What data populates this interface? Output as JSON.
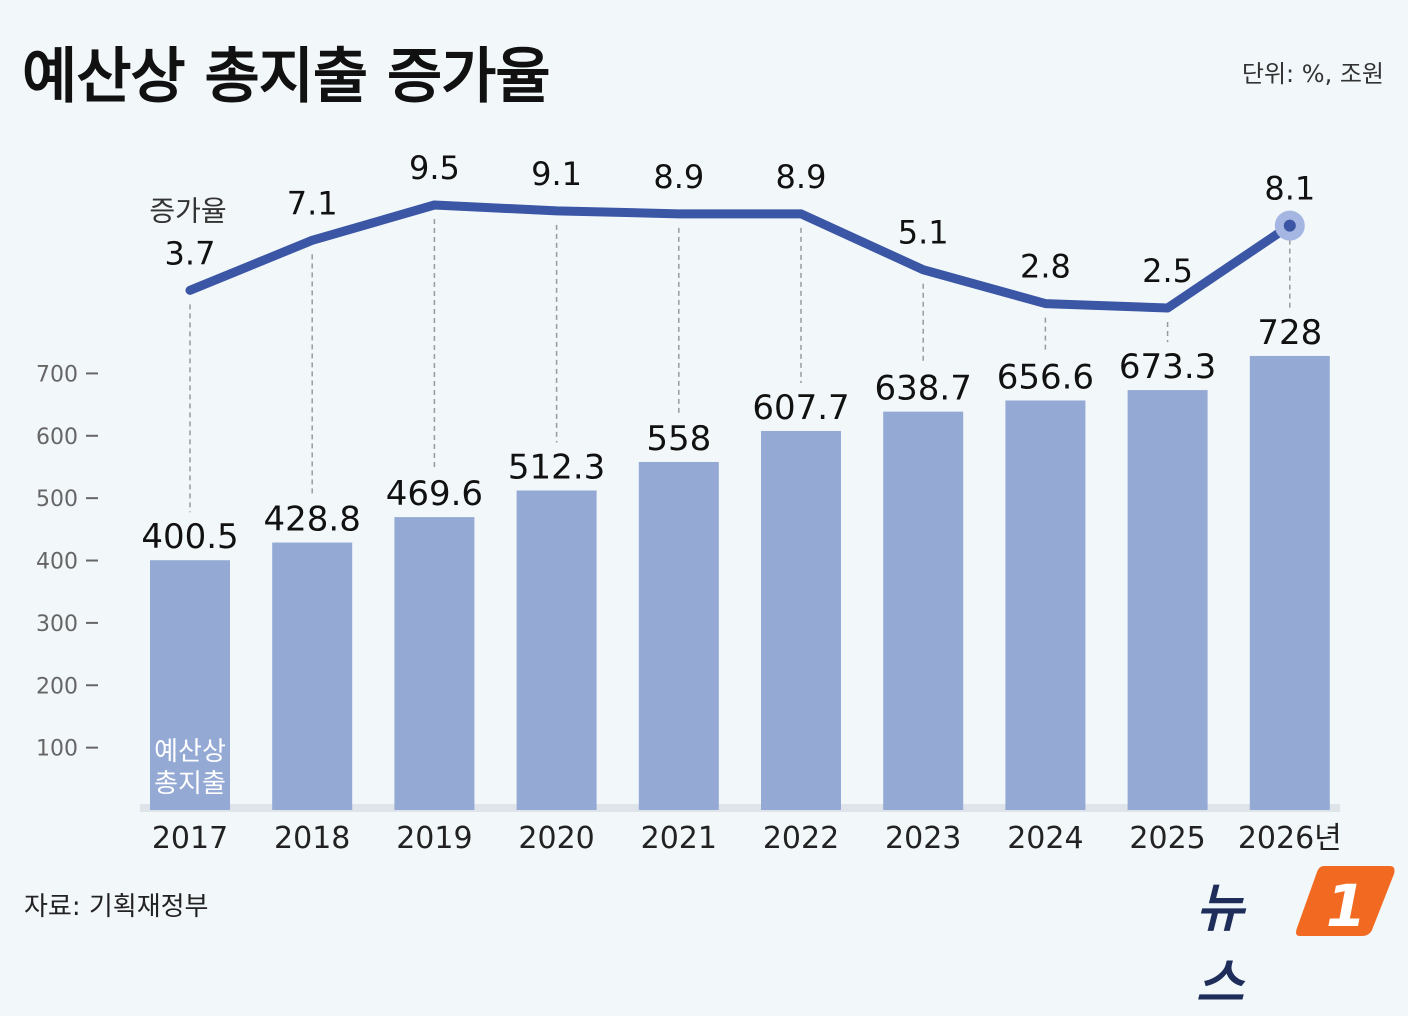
{
  "header": {
    "title": "예산상 총지출 증가율",
    "unit": "단위: %, 조원"
  },
  "footer": {
    "source": "자료: 기획재정부",
    "logo_text": "뉴스",
    "logo_mark": "1"
  },
  "colors": {
    "bar": "#94a9d4",
    "line": "#3a56a5",
    "last_point_halo": "#a6b6e3",
    "background": "#f2f7fa",
    "logo_orange": "#f26a21"
  },
  "chart_data": {
    "type": "bar+line",
    "categories": [
      "2017",
      "2018",
      "2019",
      "2020",
      "2021",
      "2022",
      "2023",
      "2024",
      "2025",
      "2026년"
    ],
    "bar_series": {
      "name": "예산상 총지출",
      "inline_label_lines": [
        "예산상",
        "총지출"
      ],
      "values": [
        400.5,
        428.8,
        469.6,
        512.3,
        558,
        607.7,
        638.7,
        656.6,
        673.3,
        728
      ],
      "value_labels": [
        "400.5",
        "428.8",
        "469.6",
        "512.3",
        "558",
        "607.7",
        "638.7",
        "656.6",
        "673.3",
        "728"
      ]
    },
    "line_series": {
      "name": "증가율",
      "values": [
        3.7,
        7.1,
        9.5,
        9.1,
        8.9,
        8.9,
        5.1,
        2.8,
        2.5,
        8.1
      ],
      "value_labels": [
        "3.7",
        "7.1",
        "9.5",
        "9.1",
        "8.9",
        "8.9",
        "5.1",
        "2.8",
        "2.5",
        "8.1"
      ],
      "highlight_last": true
    },
    "y_axis": {
      "ticks": [
        100,
        200,
        300,
        400,
        500,
        600,
        700
      ],
      "tick_labels": [
        "100",
        "200",
        "300",
        "400",
        "500",
        "600",
        "700"
      ],
      "range": [
        0,
        700
      ]
    },
    "line_axis_range": [
      2.5,
      9.5
    ],
    "grid": false,
    "guide_lines": "dashed vertical from line point to bar top"
  }
}
